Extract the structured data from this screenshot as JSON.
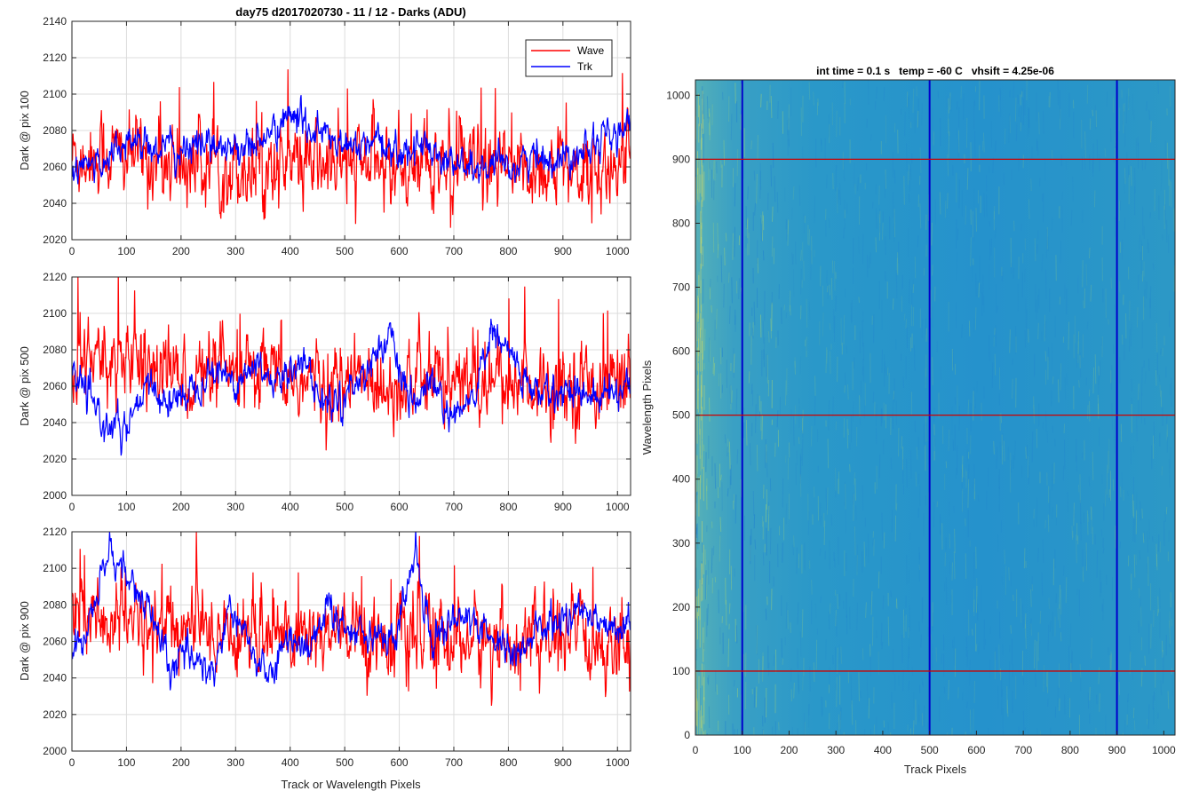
{
  "figure_title": "day75 d2017020730 - 11 / 12 - Darks (ADU)",
  "colors": {
    "wave": "#ff0000",
    "trk": "#0000ff",
    "image_base": "#2a96c8",
    "image_streak": "#8cc878"
  },
  "chart_data": [
    {
      "type": "line",
      "ylabel": "Dark @ pix 100",
      "xlabel": "",
      "xlim": [
        0,
        1024
      ],
      "ylim": [
        2020,
        2140
      ],
      "xticks": [
        0,
        100,
        200,
        300,
        400,
        500,
        600,
        700,
        800,
        900,
        1000
      ],
      "yticks": [
        2020,
        2040,
        2060,
        2080,
        2100,
        2120,
        2140
      ],
      "grid": true,
      "legend": "top-right",
      "series": [
        {
          "name": "Wave",
          "color": "#ff0000",
          "mean": 2062,
          "noise_sd": 12,
          "x": [
            0,
            50,
            100,
            150,
            200,
            250,
            300,
            350,
            400,
            450,
            500,
            550,
            600,
            650,
            700,
            750,
            800,
            850,
            900,
            950,
            1024
          ],
          "y": [
            2066,
            2067,
            2066,
            2064,
            2062,
            2061,
            2060,
            2060,
            2061,
            2061,
            2060,
            2062,
            2061,
            2060,
            2060,
            2058,
            2058,
            2060,
            2059,
            2058,
            2058
          ]
        },
        {
          "name": "Trk",
          "color": "#0000ff",
          "mean": 2068,
          "noise_sd": 5,
          "x": [
            0,
            50,
            100,
            150,
            200,
            250,
            300,
            350,
            400,
            450,
            500,
            550,
            600,
            650,
            700,
            750,
            800,
            850,
            900,
            950,
            1024
          ],
          "y": [
            2058,
            2062,
            2075,
            2072,
            2068,
            2074,
            2070,
            2074,
            2088,
            2080,
            2070,
            2072,
            2068,
            2072,
            2062,
            2058,
            2060,
            2066,
            2064,
            2075,
            2080
          ]
        }
      ]
    },
    {
      "type": "line",
      "ylabel": "Dark @ pix 500",
      "xlabel": "",
      "xlim": [
        0,
        1024
      ],
      "ylim": [
        2000,
        2120
      ],
      "xticks": [
        0,
        100,
        200,
        300,
        400,
        500,
        600,
        700,
        800,
        900,
        1000
      ],
      "yticks": [
        2000,
        2020,
        2040,
        2060,
        2080,
        2100,
        2120
      ],
      "grid": true,
      "series": [
        {
          "name": "Wave",
          "color": "#ff0000",
          "mean": 2066,
          "noise_sd": 12,
          "x": [
            0,
            50,
            100,
            150,
            200,
            250,
            300,
            350,
            400,
            450,
            500,
            550,
            600,
            650,
            700,
            750,
            800,
            850,
            900,
            950,
            1024
          ],
          "y": [
            2075,
            2072,
            2070,
            2068,
            2066,
            2065,
            2064,
            2064,
            2063,
            2062,
            2062,
            2063,
            2064,
            2063,
            2062,
            2062,
            2062,
            2061,
            2062,
            2062,
            2068
          ]
        },
        {
          "name": "Trk",
          "color": "#0000ff",
          "mean": 2060,
          "noise_sd": 5,
          "x": [
            0,
            30,
            60,
            100,
            140,
            180,
            220,
            260,
            300,
            340,
            380,
            420,
            460,
            500,
            540,
            580,
            620,
            660,
            700,
            740,
            770,
            800,
            840,
            880,
            920,
            960,
            1000,
            1024
          ],
          "y": [
            2070,
            2052,
            2040,
            2035,
            2060,
            2050,
            2060,
            2070,
            2062,
            2072,
            2060,
            2078,
            2050,
            2055,
            2070,
            2088,
            2048,
            2062,
            2038,
            2058,
            2090,
            2080,
            2058,
            2055,
            2060,
            2052,
            2058,
            2062
          ]
        }
      ]
    },
    {
      "type": "line",
      "ylabel": "Dark @ pix 900",
      "xlabel": "Track or Wavelength Pixels",
      "xlim": [
        0,
        1024
      ],
      "ylim": [
        2000,
        2120
      ],
      "xticks": [
        0,
        100,
        200,
        300,
        400,
        500,
        600,
        700,
        800,
        900,
        1000
      ],
      "yticks": [
        2000,
        2020,
        2040,
        2060,
        2080,
        2100,
        2120
      ],
      "grid": true,
      "series": [
        {
          "name": "Wave",
          "color": "#ff0000",
          "mean": 2065,
          "noise_sd": 12,
          "x": [
            0,
            50,
            100,
            150,
            200,
            250,
            300,
            350,
            400,
            450,
            500,
            550,
            600,
            650,
            700,
            750,
            800,
            850,
            900,
            950,
            1024
          ],
          "y": [
            2070,
            2072,
            2071,
            2069,
            2067,
            2066,
            2065,
            2064,
            2064,
            2063,
            2062,
            2063,
            2062,
            2062,
            2061,
            2060,
            2060,
            2061,
            2060,
            2060,
            2062
          ]
        },
        {
          "name": "Trk",
          "color": "#0000ff",
          "mean": 2060,
          "noise_sd": 5,
          "x": [
            0,
            30,
            70,
            100,
            140,
            180,
            220,
            260,
            290,
            320,
            360,
            400,
            440,
            470,
            500,
            540,
            590,
            630,
            660,
            700,
            740,
            780,
            820,
            860,
            900,
            950,
            1000,
            1024
          ],
          "y": [
            2050,
            2068,
            2112,
            2095,
            2078,
            2045,
            2055,
            2042,
            2080,
            2060,
            2040,
            2062,
            2058,
            2080,
            2065,
            2068,
            2058,
            2110,
            2060,
            2075,
            2068,
            2060,
            2052,
            2068,
            2072,
            2078,
            2065,
            2075
          ]
        }
      ]
    },
    {
      "type": "heatmap",
      "title": "int time = 0.1 s   temp = -60 C   vhsift = 4.25e-06",
      "xlabel": "Track Pixels",
      "ylabel": "Wavelength Pixels",
      "xlim": [
        0,
        1024
      ],
      "ylim": [
        0,
        1024
      ],
      "xticks": [
        0,
        100,
        200,
        300,
        400,
        500,
        600,
        700,
        800,
        900,
        1000
      ],
      "yticks": [
        0,
        100,
        200,
        300,
        400,
        500,
        600,
        700,
        800,
        900,
        1000
      ],
      "marker_rows": [
        100,
        500,
        900
      ],
      "marker_cols": [
        100,
        500,
        900
      ],
      "marker_row_color": "#cc0000",
      "marker_col_color": "#0000cc",
      "colormap": "parula"
    }
  ]
}
